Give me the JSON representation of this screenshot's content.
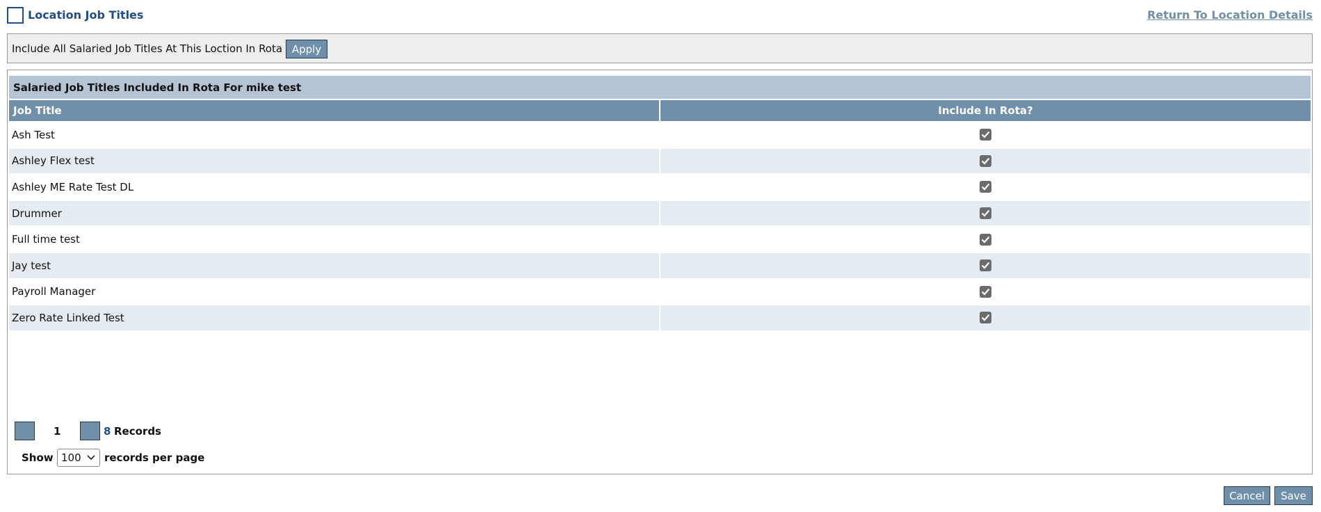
{
  "header": {
    "title": "Location Job Titles",
    "link": "Return To Location Details"
  },
  "filter": {
    "label": "Include All Salaried Job Titles At This Loction In Rota",
    "button": "Apply"
  },
  "table": {
    "title": "Salaried Job Titles Included In Rota For mike test",
    "columns": [
      "Job Title",
      "Include In Rota?"
    ],
    "rows": [
      {
        "job_title": "Ash Test",
        "include": true
      },
      {
        "job_title": "Ashley Flex test",
        "include": true
      },
      {
        "job_title": "Ashley ME Rate Test DL",
        "include": true
      },
      {
        "job_title": "Drummer",
        "include": true
      },
      {
        "job_title": "Full time test",
        "include": true
      },
      {
        "job_title": "Jay test",
        "include": true
      },
      {
        "job_title": "Payroll Manager",
        "include": true
      },
      {
        "job_title": "Zero Rate Linked Test",
        "include": true
      }
    ]
  },
  "pagination": {
    "page": "1",
    "count": "8",
    "records": "Records",
    "show": "Show",
    "per_page": "100",
    "suffix": "records per page"
  },
  "buttons": {
    "cancel": "Cancel",
    "save": "Save"
  }
}
